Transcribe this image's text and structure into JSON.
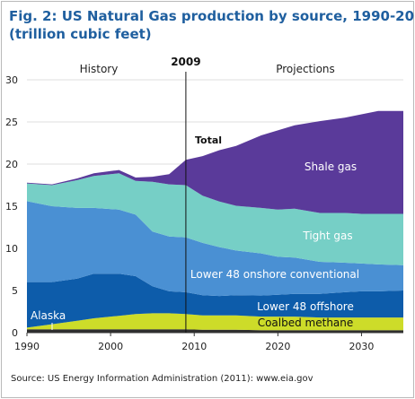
{
  "title": "Fig. 2: US Natural Gas production by source, 1990-2035",
  "subtitle": "(trillion cubic feet)",
  "source": "Source: US Energy Information Administration (2011): www.eia.gov",
  "chart_data": {
    "type": "area",
    "stacked": true,
    "x_range": [
      1990,
      2035
    ],
    "ylim": [
      0,
      30
    ],
    "y_ticks": [
      0,
      5,
      10,
      15,
      20,
      25,
      30
    ],
    "x_ticks": [
      1990,
      2000,
      2010,
      2020,
      2030
    ],
    "x": [
      1990,
      1993,
      1996,
      1998,
      2001,
      2003,
      2005,
      2007,
      2009,
      2011,
      2013,
      2015,
      2018,
      2020,
      2022,
      2025,
      2028,
      2030,
      2032,
      2035
    ],
    "series": [
      {
        "name": "Alaska",
        "color": "#2e2e2e",
        "values": [
          0.4,
          0.4,
          0.4,
          0.4,
          0.4,
          0.4,
          0.4,
          0.4,
          0.4,
          0.35,
          0.35,
          0.35,
          0.3,
          0.3,
          0.3,
          0.3,
          0.3,
          0.3,
          0.3,
          0.3
        ]
      },
      {
        "name": "Coalbed methane",
        "color": "#cddc29",
        "values": [
          0.2,
          0.6,
          1.0,
          1.3,
          1.6,
          1.8,
          1.9,
          1.9,
          1.8,
          1.7,
          1.7,
          1.7,
          1.6,
          1.6,
          1.6,
          1.5,
          1.5,
          1.5,
          1.5,
          1.5
        ]
      },
      {
        "name": "Lower 48 offshore",
        "color": "#0d5caa",
        "values": [
          5.4,
          5.0,
          5.0,
          5.3,
          5.0,
          4.5,
          3.2,
          2.6,
          2.6,
          2.4,
          2.3,
          2.4,
          2.5,
          2.6,
          2.7,
          2.8,
          3.0,
          3.1,
          3.1,
          3.2
        ]
      },
      {
        "name": "Lower 48 onshore conventional",
        "color": "#4a90d3",
        "values": [
          9.6,
          9.0,
          8.4,
          7.8,
          7.6,
          7.3,
          6.5,
          6.5,
          6.5,
          6.2,
          5.8,
          5.3,
          5.0,
          4.5,
          4.3,
          3.8,
          3.5,
          3.3,
          3.2,
          3.0
        ]
      },
      {
        "name": "Tight gas",
        "color": "#76cfc6",
        "values": [
          2.1,
          2.5,
          3.3,
          3.8,
          4.3,
          4.0,
          5.9,
          6.2,
          6.2,
          5.6,
          5.4,
          5.3,
          5.4,
          5.6,
          5.8,
          5.8,
          5.9,
          5.9,
          6.0,
          6.1
        ]
      },
      {
        "name": "Shale gas",
        "color": "#5a3a9a",
        "values": [
          0.1,
          0.1,
          0.2,
          0.3,
          0.4,
          0.4,
          0.6,
          1.2,
          3.0,
          4.7,
          6.1,
          7.1,
          8.6,
          9.4,
          9.9,
          10.9,
          11.3,
          11.8,
          12.2,
          12.2
        ]
      }
    ],
    "annotations": {
      "history": "History",
      "projections": "Projections",
      "divider_year": 2009,
      "divider_label": "2009",
      "total": "Total"
    }
  }
}
